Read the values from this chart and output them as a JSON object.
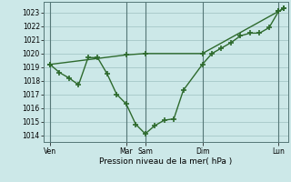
{
  "background_color": "#cce8e8",
  "grid_color": "#aacccc",
  "line_color": "#2d6a2d",
  "xlabel": "Pression niveau de la mer( hPa )",
  "ylim": [
    1013.5,
    1023.8
  ],
  "yticks": [
    1014,
    1015,
    1016,
    1017,
    1018,
    1019,
    1020,
    1021,
    1022,
    1023
  ],
  "xtick_labels": [
    "Ven",
    "Mar",
    "Sam",
    "Dim",
    "Lun"
  ],
  "xtick_positions": [
    0,
    96,
    120,
    192,
    288
  ],
  "vline_positions": [
    0,
    96,
    120,
    192,
    288
  ],
  "xlim": [
    -8,
    300
  ],
  "line2_x": [
    0,
    12,
    24,
    36,
    48,
    60,
    72,
    84,
    96,
    108,
    120,
    132,
    144,
    156,
    168,
    192,
    204,
    216,
    228,
    240,
    252,
    264,
    276,
    288,
    294
  ],
  "line2_y": [
    1019.2,
    1018.6,
    1018.2,
    1017.7,
    1019.7,
    1019.7,
    1018.5,
    1017.0,
    1016.3,
    1014.8,
    1014.1,
    1014.7,
    1015.1,
    1015.2,
    1017.3,
    1019.2,
    1020.0,
    1020.4,
    1020.8,
    1021.3,
    1021.5,
    1021.5,
    1021.9,
    1023.1,
    1023.3
  ],
  "straight_x": [
    0,
    96,
    120,
    192,
    288,
    294
  ],
  "straight_y": [
    1019.2,
    1019.9,
    1020.0,
    1020.0,
    1023.1,
    1023.3
  ]
}
